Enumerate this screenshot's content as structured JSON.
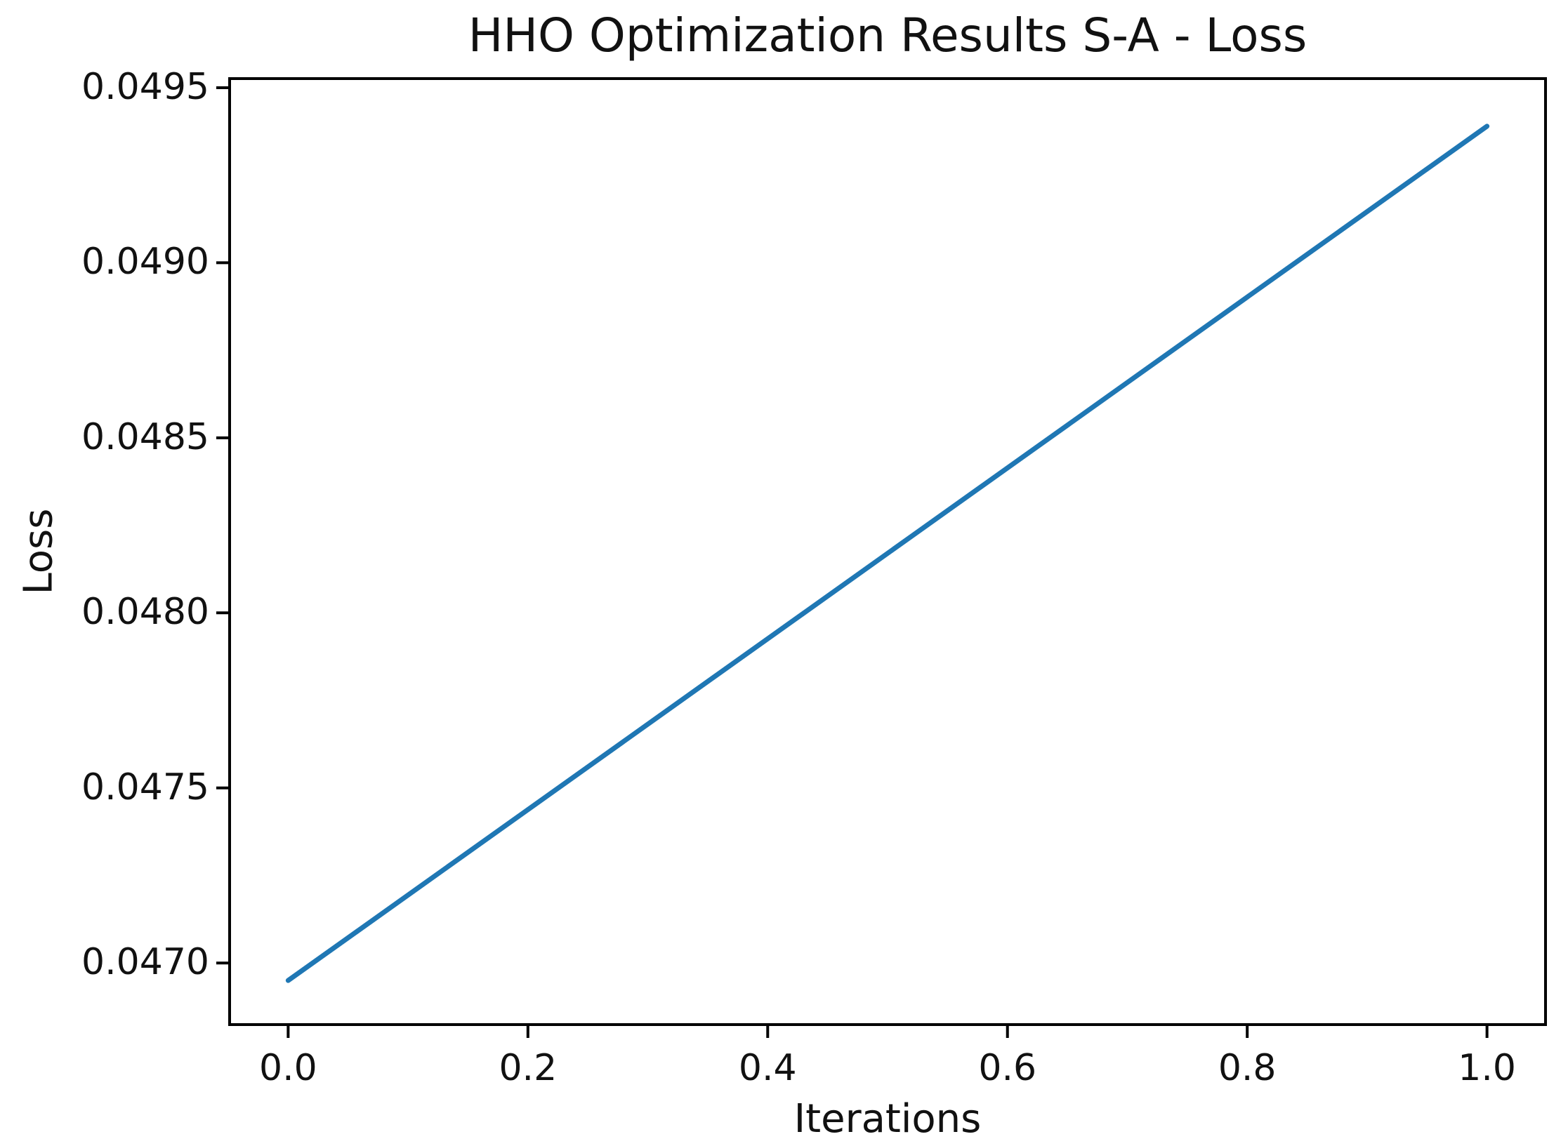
{
  "figure": {
    "background": "#ffffff"
  },
  "chart_data": {
    "type": "line",
    "title": "HHO Optimization Results S-A - Loss",
    "xlabel": "Iterations",
    "ylabel": "Loss",
    "x": [
      0.0,
      1.0
    ],
    "series": [
      {
        "name": "Loss",
        "values": [
          0.04695,
          0.04939
        ],
        "color": "#1f77b4",
        "line_width": 7
      }
    ],
    "xlim": [
      -0.05,
      1.05
    ],
    "ylim": [
      0.04682,
      0.04953
    ],
    "xticks": [
      0.0,
      0.2,
      0.4,
      0.6,
      0.8,
      1.0
    ],
    "xtick_labels": [
      "0.0",
      "0.2",
      "0.4",
      "0.6",
      "0.8",
      "1.0"
    ],
    "yticks": [
      0.047,
      0.0475,
      0.048,
      0.0485,
      0.049,
      0.0495
    ],
    "ytick_labels": [
      "0.0470",
      "0.0475",
      "0.0480",
      "0.0485",
      "0.0490",
      "0.0495"
    ],
    "grid": false,
    "legend": null
  },
  "colors": {
    "line": "#1f77b4",
    "spine": "#000000",
    "text": "#111111",
    "background": "#ffffff"
  }
}
